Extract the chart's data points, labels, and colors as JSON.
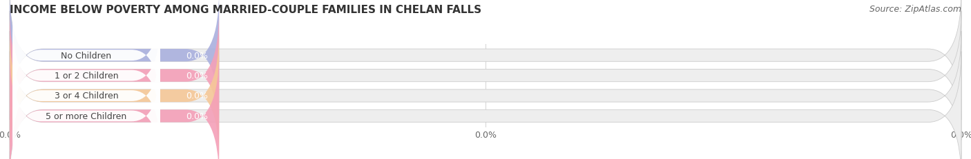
{
  "title": "INCOME BELOW POVERTY AMONG MARRIED-COUPLE FAMILIES IN CHELAN FALLS",
  "source_text": "Source: ZipAtlas.com",
  "categories": [
    "No Children",
    "1 or 2 Children",
    "3 or 4 Children",
    "5 or more Children"
  ],
  "values": [
    0.0,
    0.0,
    0.0,
    0.0
  ],
  "bar_colors": [
    "#aab0de",
    "#f4a0b8",
    "#f5c898",
    "#f4a0b8"
  ],
  "bar_bg_color": "#eeeeee",
  "background_color": "#ffffff",
  "grid_color": "#d8d8d8",
  "title_fontsize": 11,
  "bar_label_fontsize": 9,
  "value_label_fontsize": 9,
  "tick_fontsize": 9,
  "source_fontsize": 9
}
